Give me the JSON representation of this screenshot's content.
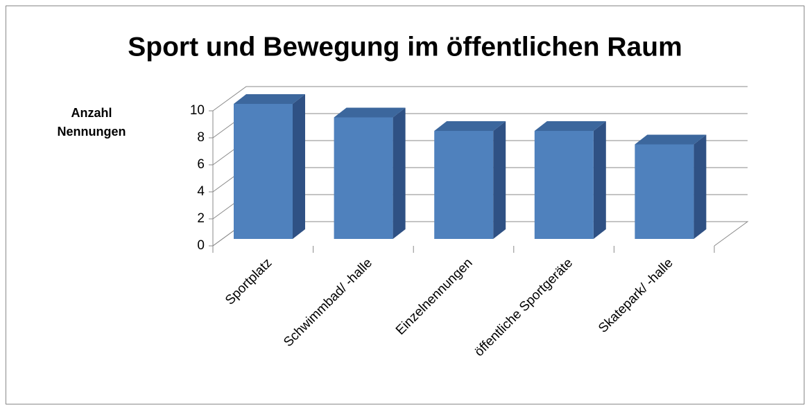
{
  "chart_data": {
    "type": "bar3d",
    "title": "Sport und Bewegung im öffentlichen Raum",
    "y_label": "Anzahl Nennungen",
    "categories": [
      "Sportplatz",
      "Schwimmbad/ -halle",
      "Einzelnennungen",
      "öffentliche Sportgeräte",
      "Skatepark/ -halle"
    ],
    "values": [
      10,
      9,
      8,
      8,
      7
    ],
    "color": "#4f81bd",
    "ylim": [
      0,
      10
    ],
    "yticks": [
      0,
      2,
      4,
      6,
      8,
      10
    ],
    "grid": true
  }
}
